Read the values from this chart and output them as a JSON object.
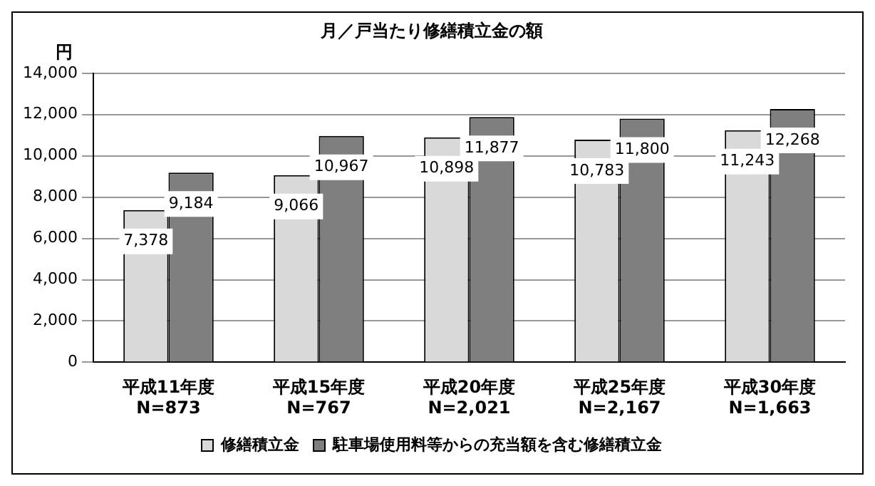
{
  "chart_data": {
    "type": "bar",
    "title": "月／戸当たり修繕積立金の額",
    "ylabel": "円",
    "categories": [
      "平成11年度\nN=873",
      "平成15年度\nN=767",
      "平成20年度\nN=2,021",
      "平成25年度\nN=2,167",
      "平成30年度\nN=1,663"
    ],
    "series": [
      {
        "name": "修繕積立金",
        "color": "#d9d9d9",
        "values": [
          7378,
          9066,
          10898,
          10783,
          11243
        ],
        "value_labels": [
          "7,378",
          "9,066",
          "10,898",
          "10,783",
          "11,243"
        ]
      },
      {
        "name": "駐車場使用料等からの充当額を含む修繕積立金",
        "color": "#7f7f7f",
        "values": [
          9184,
          10967,
          11877,
          11800,
          12268
        ],
        "value_labels": [
          "9,184",
          "10,967",
          "11,877",
          "11,800",
          "12,268"
        ]
      }
    ],
    "ylim": [
      0,
      14000
    ],
    "yticks": [
      {
        "value": 0,
        "label": "0"
      },
      {
        "value": 2000,
        "label": "2,000"
      },
      {
        "value": 4000,
        "label": "4,000"
      },
      {
        "value": 6000,
        "label": "6,000"
      },
      {
        "value": 8000,
        "label": "8,000"
      },
      {
        "value": 10000,
        "label": "10,000"
      },
      {
        "value": 12000,
        "label": "12,000"
      },
      {
        "value": 14000,
        "label": "14,000"
      }
    ],
    "grid": "y",
    "legend": "bottom"
  }
}
